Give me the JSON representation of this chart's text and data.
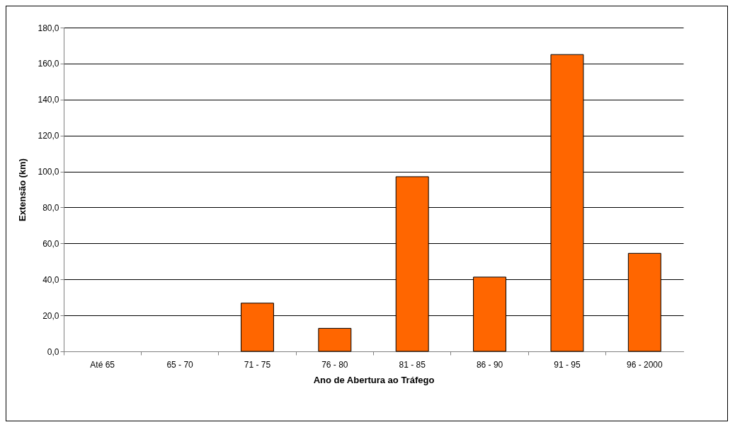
{
  "chart_data": {
    "type": "bar",
    "xlabel": "Ano de Abertura ao Tráfego",
    "ylabel": "Extensão (km)",
    "categories": [
      "Até 65",
      "65 - 70",
      "71 - 75",
      "76 - 80",
      "81 - 85",
      "86 - 90",
      "91 - 95",
      "96 - 2000"
    ],
    "values": [
      0,
      0,
      26.8,
      12.8,
      97.1,
      41.3,
      165.0,
      54.5
    ],
    "color": "#ff6600",
    "ylim": [
      0,
      180
    ],
    "yticks": [
      {
        "value": 0,
        "label": "0,0"
      },
      {
        "value": 20,
        "label": "20,0"
      },
      {
        "value": 40,
        "label": "40,0"
      },
      {
        "value": 60,
        "label": "60,0"
      },
      {
        "value": 80,
        "label": "80,0"
      },
      {
        "value": 100,
        "label": "100,0"
      },
      {
        "value": 120,
        "label": "120,0"
      },
      {
        "value": 140,
        "label": "140,0"
      },
      {
        "value": 160,
        "label": "160,0"
      },
      {
        "value": 180,
        "label": "180,0"
      }
    ],
    "grid": "y"
  }
}
